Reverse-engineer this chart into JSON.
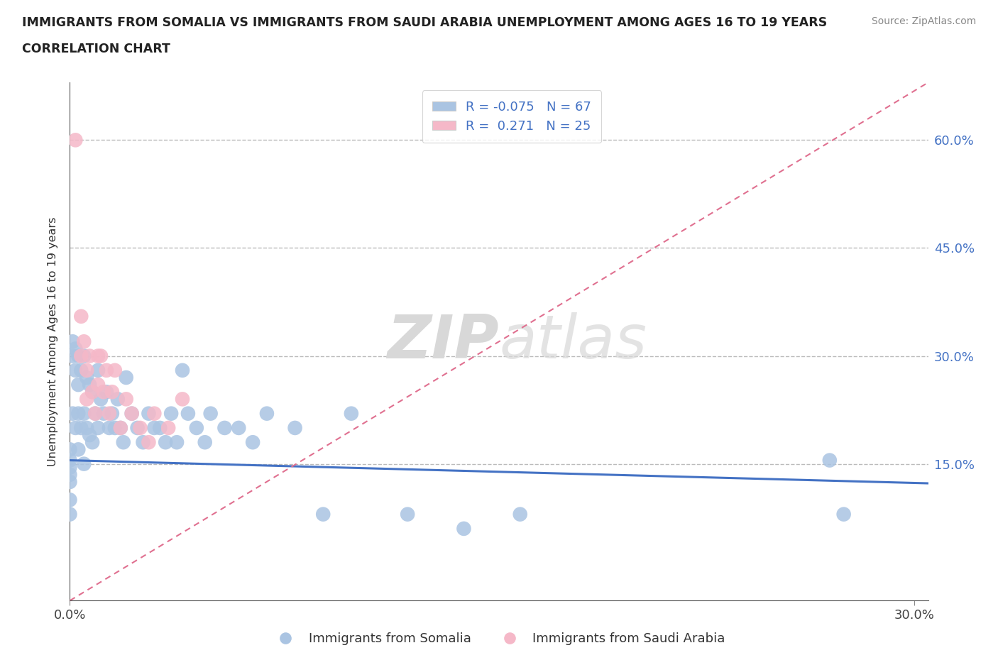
{
  "title_line1": "IMMIGRANTS FROM SOMALIA VS IMMIGRANTS FROM SAUDI ARABIA UNEMPLOYMENT AMONG AGES 16 TO 19 YEARS",
  "title_line2": "CORRELATION CHART",
  "source": "Source: ZipAtlas.com",
  "ylabel": "Unemployment Among Ages 16 to 19 years",
  "xlim": [
    0.0,
    0.305
  ],
  "ylim": [
    -0.04,
    0.68
  ],
  "yticks": [
    0.15,
    0.3,
    0.45,
    0.6
  ],
  "ytick_labels": [
    "15.0%",
    "30.0%",
    "45.0%",
    "60.0%"
  ],
  "xticks": [
    0.0,
    0.3
  ],
  "xtick_labels": [
    "0.0%",
    "30.0%"
  ],
  "somalia_color": "#aac4e2",
  "saudi_color": "#f5b8c8",
  "somalia_line_color": "#4472c4",
  "saudi_line_color": "#e07090",
  "R_somalia": -0.075,
  "N_somalia": 67,
  "R_saudi": 0.271,
  "N_saudi": 25,
  "watermark_zip": "ZIP",
  "watermark_atlas": "atlas",
  "legend_somalia": "Immigrants from Somalia",
  "legend_saudi": "Immigrants from Saudi Arabia",
  "somalia_line_x": [
    0.0,
    0.305
  ],
  "somalia_line_y": [
    0.155,
    0.123
  ],
  "saudi_line_x": [
    0.0,
    0.305
  ],
  "saudi_line_y": [
    -0.04,
    0.68
  ],
  "som_x": [
    0.0,
    0.0,
    0.0,
    0.0,
    0.0,
    0.0,
    0.0,
    0.001,
    0.001,
    0.001,
    0.002,
    0.002,
    0.002,
    0.003,
    0.003,
    0.003,
    0.003,
    0.004,
    0.004,
    0.005,
    0.005,
    0.005,
    0.006,
    0.006,
    0.007,
    0.007,
    0.008,
    0.008,
    0.009,
    0.01,
    0.01,
    0.011,
    0.012,
    0.013,
    0.014,
    0.015,
    0.016,
    0.017,
    0.018,
    0.019,
    0.02,
    0.022,
    0.024,
    0.026,
    0.028,
    0.03,
    0.032,
    0.034,
    0.036,
    0.038,
    0.04,
    0.042,
    0.045,
    0.048,
    0.05,
    0.055,
    0.06,
    0.065,
    0.07,
    0.08,
    0.09,
    0.1,
    0.12,
    0.14,
    0.16,
    0.27,
    0.275
  ],
  "som_y": [
    0.17,
    0.155,
    0.145,
    0.135,
    0.125,
    0.1,
    0.08,
    0.32,
    0.3,
    0.22,
    0.31,
    0.28,
    0.2,
    0.3,
    0.26,
    0.22,
    0.17,
    0.28,
    0.2,
    0.3,
    0.22,
    0.15,
    0.27,
    0.2,
    0.26,
    0.19,
    0.25,
    0.18,
    0.22,
    0.28,
    0.2,
    0.24,
    0.22,
    0.25,
    0.2,
    0.22,
    0.2,
    0.24,
    0.2,
    0.18,
    0.27,
    0.22,
    0.2,
    0.18,
    0.22,
    0.2,
    0.2,
    0.18,
    0.22,
    0.18,
    0.28,
    0.22,
    0.2,
    0.18,
    0.22,
    0.2,
    0.2,
    0.18,
    0.22,
    0.2,
    0.08,
    0.22,
    0.08,
    0.06,
    0.08,
    0.155,
    0.08
  ],
  "sau_x": [
    0.002,
    0.004,
    0.004,
    0.005,
    0.006,
    0.006,
    0.007,
    0.008,
    0.009,
    0.01,
    0.01,
    0.011,
    0.012,
    0.013,
    0.014,
    0.015,
    0.016,
    0.018,
    0.02,
    0.022,
    0.025,
    0.028,
    0.03,
    0.035,
    0.04
  ],
  "sau_y": [
    0.6,
    0.355,
    0.3,
    0.32,
    0.28,
    0.24,
    0.3,
    0.25,
    0.22,
    0.3,
    0.26,
    0.3,
    0.25,
    0.28,
    0.22,
    0.25,
    0.28,
    0.2,
    0.24,
    0.22,
    0.2,
    0.18,
    0.22,
    0.2,
    0.24
  ]
}
